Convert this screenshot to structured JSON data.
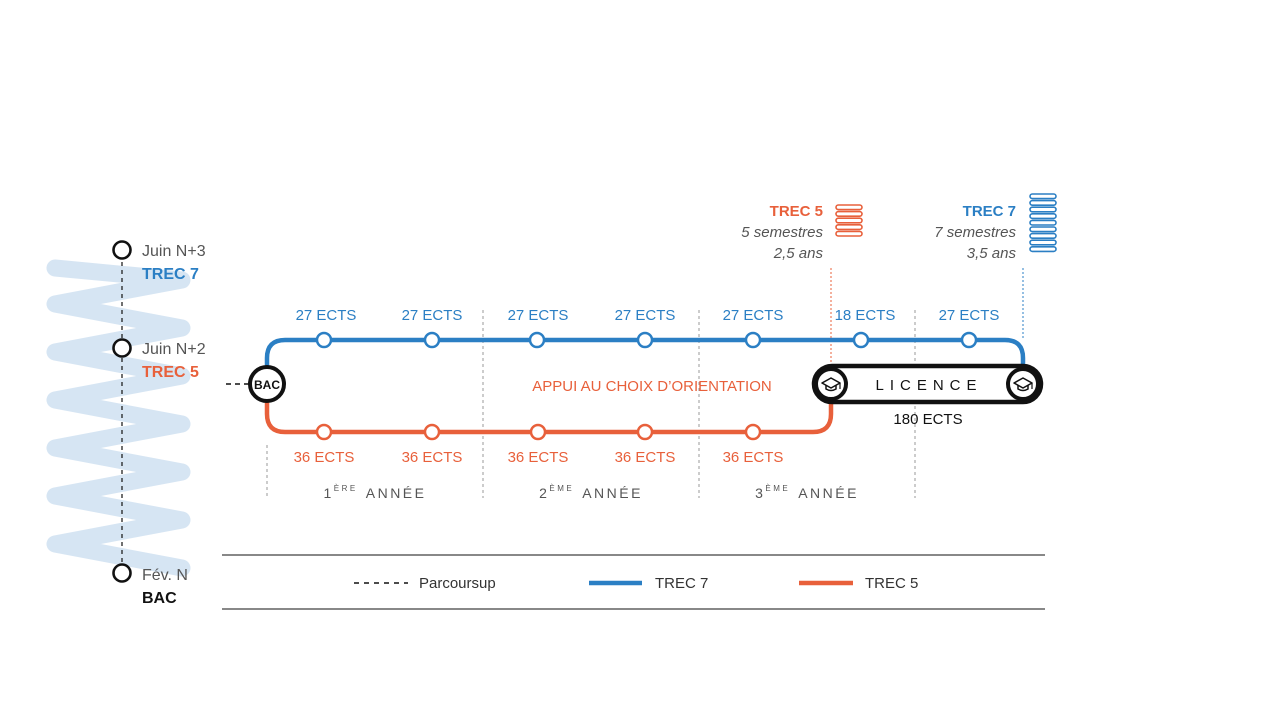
{
  "colors": {
    "blue": "#2b7fc4",
    "orange": "#e8603b",
    "black": "#111111",
    "gray_text": "#555555",
    "gray_line": "#9a9a9a",
    "zigzag_light": "#cfe1f1"
  },
  "timeline": {
    "milestones": [
      {
        "label": "Juin N+3",
        "sub": "TREC 7",
        "sub_color": "blue"
      },
      {
        "label": "Juin N+2",
        "sub": "TREC 5",
        "sub_color": "orange"
      },
      {
        "label": "Fév. N",
        "sub": "BAC",
        "sub_color": "black"
      }
    ]
  },
  "start": {
    "label": "BAC"
  },
  "trec7": {
    "ects": [
      "27 ECTS",
      "27 ECTS",
      "27 ECTS",
      "27 ECTS",
      "27 ECTS",
      "18 ECTS",
      "27 ECTS"
    ],
    "note_title": "TREC 7",
    "note_semesters": "7 semestres",
    "note_years": "3,5 ans"
  },
  "trec5": {
    "ects": [
      "36 ECTS",
      "36 ECTS",
      "36 ECTS",
      "36 ECTS",
      "36 ECTS"
    ],
    "note_title": "TREC 5",
    "note_semesters": "5 semestres",
    "note_years": "2,5 ans"
  },
  "center_label": "APPUI AU CHOIX D’ORIENTATION",
  "licence": {
    "label": "LICENCE",
    "ects": "180 ECTS",
    "cap_icon": "graduation-cap-icon"
  },
  "years": [
    {
      "num": "1",
      "sup": "ÈRE",
      "word": "ANNÉE"
    },
    {
      "num": "2",
      "sup": "ÈME",
      "word": "ANNÉE"
    },
    {
      "num": "3",
      "sup": "ÈME",
      "word": "ANNÉE"
    }
  ],
  "legend": {
    "parcoursup": "Parcoursup",
    "trec7": "TREC 7",
    "trec5": "TREC 5"
  }
}
